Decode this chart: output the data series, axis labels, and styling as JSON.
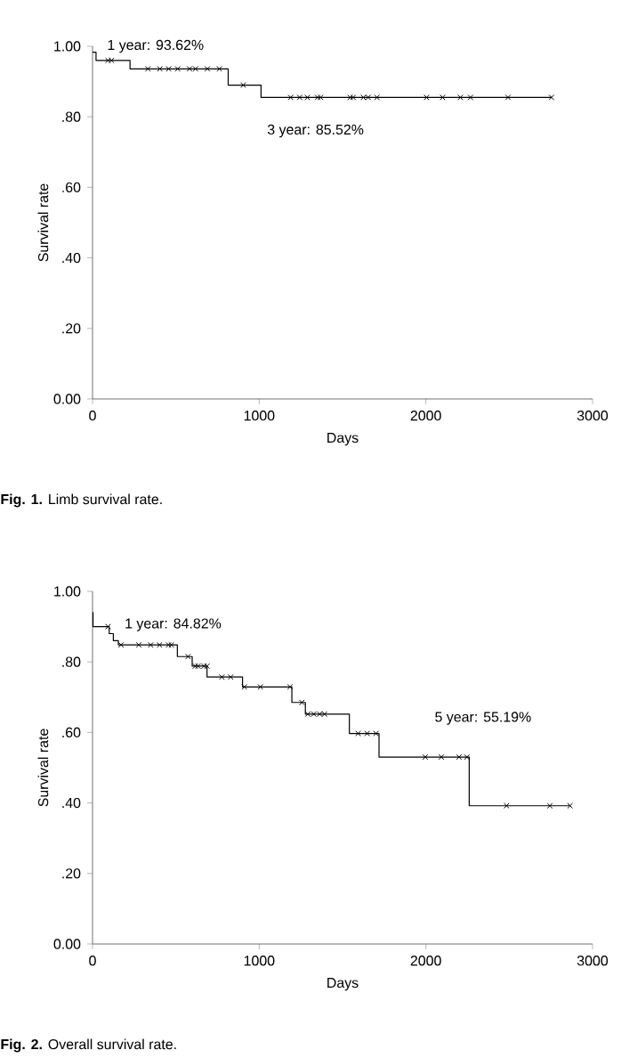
{
  "chart_data": [
    {
      "type": "step",
      "xlabel": "Days",
      "ylabel": "Survival rate",
      "xlim": [
        0,
        3000
      ],
      "ylim": [
        0,
        1
      ],
      "xticks": [
        0,
        1000,
        2000,
        3000
      ],
      "yticks": [
        {
          "value": 0,
          "label": "0.00"
        },
        {
          "value": 0.2,
          "label": ".20"
        },
        {
          "value": 0.4,
          "label": ".40"
        },
        {
          "value": 0.6,
          "label": ".60"
        },
        {
          "value": 0.8,
          "label": ".80"
        },
        {
          "value": 1,
          "label": "1.00"
        }
      ],
      "annotations": [
        "1 year: 93.62%",
        "3 year: 85.52%",
        "**Fig. 1.** Limb survival rate."
      ],
      "series": [
        {
          "color": "#000000",
          "marker": "none",
          "line_style": "solid",
          "x": [
            0,
            21,
            225,
            814,
            1011,
            2754
          ],
          "values": [
            0.983,
            0.96,
            0.936,
            0.89,
            0.855,
            0.855
          ]
        },
        {
          "type": "scatter",
          "color": "#000000",
          "marker": "cross",
          "x": [
            93,
            114,
            332,
            404,
            457,
            511,
            582,
            618,
            689,
            761,
            904,
            1189,
            1243,
            1289,
            1350,
            1368,
            1546,
            1564,
            1625,
            1654,
            1707,
            2004,
            2100,
            2207,
            2268,
            2493,
            2754
          ],
          "values": [
            0.96,
            0.96,
            0.936,
            0.936,
            0.936,
            0.936,
            0.936,
            0.936,
            0.936,
            0.936,
            0.89,
            0.855,
            0.855,
            0.855,
            0.855,
            0.855,
            0.855,
            0.855,
            0.855,
            0.855,
            0.855,
            0.855,
            0.855,
            0.855,
            0.855,
            0.855,
            0.855
          ]
        }
      ]
    },
    {
      "type": "step",
      "xlabel": "Days",
      "ylabel": "Survival rate",
      "xlim": [
        0,
        3000
      ],
      "ylim": [
        0,
        1
      ],
      "xticks": [
        0,
        1000,
        2000,
        3000
      ],
      "yticks": [
        {
          "value": 0,
          "label": "0.00"
        },
        {
          "value": 0.2,
          "label": ".20"
        },
        {
          "value": 0.4,
          "label": ".40"
        },
        {
          "value": 0.6,
          "label": ".60"
        },
        {
          "value": 0.8,
          "label": ".80"
        },
        {
          "value": 1,
          "label": "1.00"
        }
      ],
      "annotations": [
        "1 year: 84.82%",
        "5 year: 55.19%",
        "**Fig. 2.** Overall survival rate."
      ],
      "series": [
        {
          "color": "#000000",
          "marker": "none",
          "line_style": "solid",
          "x": [
            0,
            3,
            100,
            125,
            155,
            509,
            598,
            687,
            900,
            1196,
            1277,
            1541,
            1719,
            2260,
            2865
          ],
          "values": [
            0.94,
            0.9,
            0.88,
            0.86,
            0.848,
            0.815,
            0.788,
            0.757,
            0.729,
            0.685,
            0.652,
            0.597,
            0.53,
            0.392,
            0.392
          ]
        },
        {
          "type": "scatter",
          "color": "#000000",
          "marker": "cross",
          "x": [
            93,
            171,
            278,
            349,
            402,
            456,
            473,
            573,
            616,
            633,
            669,
            687,
            776,
            829,
            911,
            1007,
            1185,
            1256,
            1292,
            1327,
            1363,
            1392,
            1594,
            1648,
            1701,
            1996,
            2093,
            2199,
            2246,
            2484,
            2744,
            2865
          ],
          "values": [
            0.9,
            0.848,
            0.848,
            0.848,
            0.848,
            0.848,
            0.848,
            0.815,
            0.788,
            0.788,
            0.788,
            0.788,
            0.757,
            0.757,
            0.729,
            0.729,
            0.729,
            0.685,
            0.652,
            0.652,
            0.652,
            0.652,
            0.597,
            0.597,
            0.597,
            0.53,
            0.53,
            0.53,
            0.53,
            0.392,
            0.392,
            0.392
          ]
        }
      ]
    }
  ]
}
